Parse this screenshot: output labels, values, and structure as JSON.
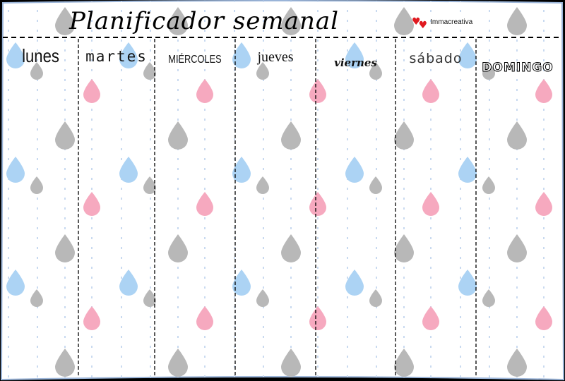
{
  "planner": {
    "title": "Planificador semanal",
    "brand": "Immacreativa",
    "brand_icon": "hearts-icon",
    "days": [
      "lunes",
      "martes",
      "miércoles",
      "jueves",
      "viernes",
      "sábado",
      "domingo"
    ]
  },
  "palette": {
    "frame": "#000000",
    "paper": "#ffffff",
    "border": "#9ab4d8",
    "drop_grey": "#b8b8b8",
    "drop_pink": "#f6a9bf",
    "drop_blue": "#acd3f4",
    "dash_line": "#000000",
    "heart": "#e0191f"
  }
}
